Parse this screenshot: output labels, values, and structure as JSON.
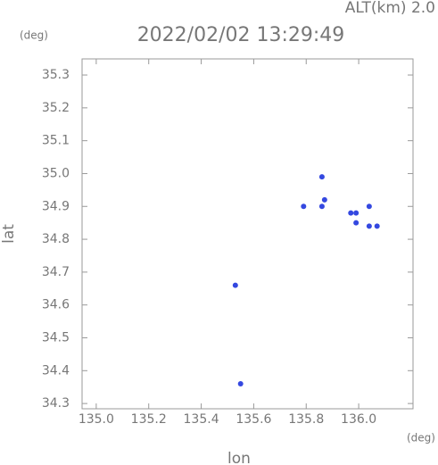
{
  "chart_data": {
    "type": "scatter",
    "title": "2022/02/02 13:29:49",
    "annotation": "ALT(km) 2.0",
    "x_label": "lon",
    "y_label": "lat",
    "x_unit": "(deg)",
    "y_unit": "(deg)",
    "color": "#3448e0",
    "x": [
      135.86,
      135.79,
      135.86,
      135.87,
      135.97,
      135.99,
      135.99,
      136.04,
      136.04,
      136.07,
      135.53,
      135.55
    ],
    "values": [
      34.99,
      34.9,
      34.9,
      34.92,
      34.88,
      34.88,
      34.85,
      34.9,
      34.84,
      34.84,
      34.66,
      34.36
    ],
    "xlim": [
      134.946,
      136.207
    ],
    "ylim": [
      34.284,
      35.349
    ],
    "xticks": [
      {
        "value": 135.0,
        "label": "135.0"
      },
      135.2,
      135.4,
      135.6,
      135.8,
      {
        "value": 136.0,
        "label": "136.0"
      }
    ],
    "yticks": [
      35.3,
      35.2,
      35.1,
      {
        "value": 35.0,
        "label": "35.0"
      },
      34.9,
      34.8,
      34.7,
      34.6,
      34.5,
      34.4,
      34.3
    ],
    "grid": false
  }
}
